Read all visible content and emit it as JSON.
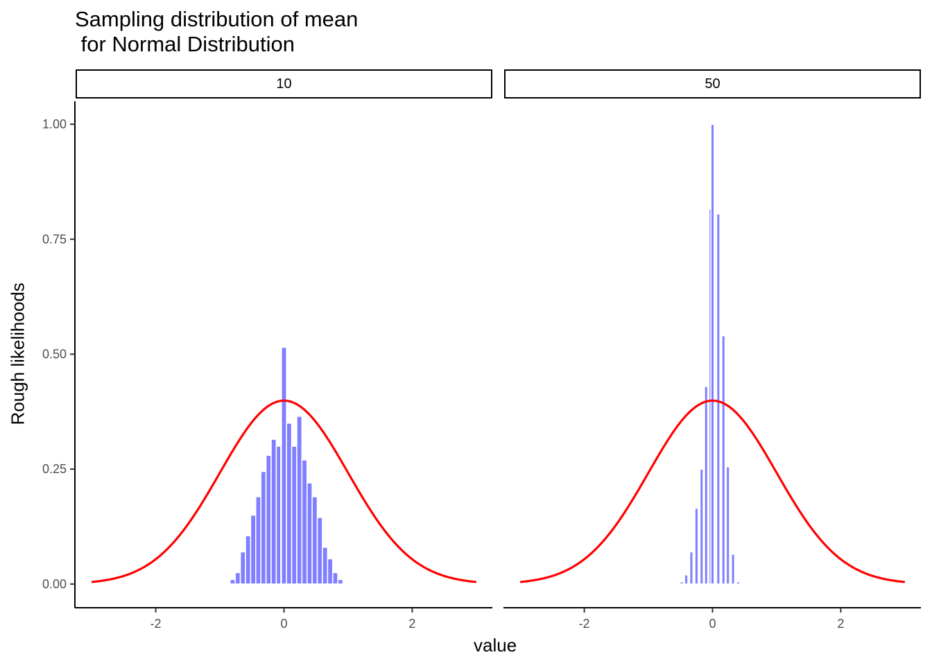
{
  "chart_data": {
    "type": "bar",
    "title_line1": "Sampling distribution of mean",
    "title_line2": " for Normal Distribution",
    "xlabel": "value",
    "ylabel": "Rough likelihoods",
    "xlim": [
      -3.25,
      3.25
    ],
    "ylim": [
      -0.05,
      1.05
    ],
    "x_ticks": [
      -2,
      0,
      2
    ],
    "x_tick_labels": [
      "-2",
      "0",
      "2"
    ],
    "y_ticks": [
      0,
      0.25,
      0.5,
      0.75,
      1.0
    ],
    "y_tick_labels": [
      "0.00",
      "0.25",
      "0.50",
      "0.75",
      "1.00"
    ],
    "grid": false,
    "bar_color": "#7F7FFF",
    "curve_color": "#FF0000",
    "curve": {
      "name": "normal density",
      "mean": 0,
      "sd": 1,
      "x_range": [
        -3,
        3
      ]
    },
    "panels": [
      {
        "strip_label": "10",
        "bin_width": 0.08,
        "bins": [
          {
            "x": -0.8,
            "y": 0.01
          },
          {
            "x": -0.72,
            "y": 0.025
          },
          {
            "x": -0.64,
            "y": 0.07
          },
          {
            "x": -0.56,
            "y": 0.105
          },
          {
            "x": -0.48,
            "y": 0.15
          },
          {
            "x": -0.4,
            "y": 0.19
          },
          {
            "x": -0.32,
            "y": 0.245
          },
          {
            "x": -0.24,
            "y": 0.28
          },
          {
            "x": -0.16,
            "y": 0.315
          },
          {
            "x": -0.08,
            "y": 0.3
          },
          {
            "x": -0.01,
            "y": 0.405
          },
          {
            "x": 0.0,
            "y": 0.515
          },
          {
            "x": 0.08,
            "y": 0.35
          },
          {
            "x": 0.16,
            "y": 0.3
          },
          {
            "x": 0.24,
            "y": 0.365
          },
          {
            "x": 0.32,
            "y": 0.27
          },
          {
            "x": 0.4,
            "y": 0.22
          },
          {
            "x": 0.48,
            "y": 0.19
          },
          {
            "x": 0.56,
            "y": 0.145
          },
          {
            "x": 0.64,
            "y": 0.08
          },
          {
            "x": 0.72,
            "y": 0.055
          },
          {
            "x": 0.8,
            "y": 0.025
          },
          {
            "x": 0.88,
            "y": 0.01
          }
        ]
      },
      {
        "strip_label": "50",
        "bin_width": 0.05,
        "bins": [
          {
            "x": -0.48,
            "y": 0.005
          },
          {
            "x": -0.41,
            "y": 0.02
          },
          {
            "x": -0.33,
            "y": 0.07
          },
          {
            "x": -0.25,
            "y": 0.165
          },
          {
            "x": -0.17,
            "y": 0.25
          },
          {
            "x": -0.1,
            "y": 0.43
          },
          {
            "x": -0.03,
            "y": 0.815
          },
          {
            "x": 0.0,
            "y": 1.0
          },
          {
            "x": 0.09,
            "y": 0.805
          },
          {
            "x": 0.17,
            "y": 0.54
          },
          {
            "x": 0.24,
            "y": 0.255
          },
          {
            "x": 0.32,
            "y": 0.065
          },
          {
            "x": 0.4,
            "y": 0.005
          }
        ]
      }
    ]
  }
}
